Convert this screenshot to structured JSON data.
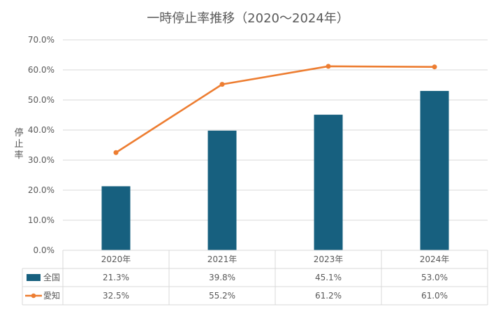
{
  "chart_data": {
    "type": "bar",
    "title": "一時停止率推移（2020〜2024年）",
    "ylabel": "停止率",
    "xlabel": "",
    "ylim": [
      0,
      70
    ],
    "yticks": [
      "0.0%",
      "10.0%",
      "20.0%",
      "30.0%",
      "40.0%",
      "50.0%",
      "60.0%",
      "70.0%"
    ],
    "categories": [
      "2020年",
      "2021年",
      "2023年",
      "2024年"
    ],
    "grid": true,
    "legend": "data-table",
    "series": [
      {
        "name": "全国",
        "kind": "bar",
        "color": "#17607f",
        "values": [
          21.3,
          39.8,
          45.1,
          53.0
        ],
        "labels": [
          "21.3%",
          "39.8%",
          "45.1%",
          "53.0%"
        ]
      },
      {
        "name": "愛知",
        "kind": "line",
        "color": "#ed7d31",
        "values": [
          32.5,
          55.2,
          61.2,
          61.0
        ],
        "labels": [
          "32.5%",
          "55.2%",
          "61.2%",
          "61.0%"
        ]
      }
    ]
  }
}
